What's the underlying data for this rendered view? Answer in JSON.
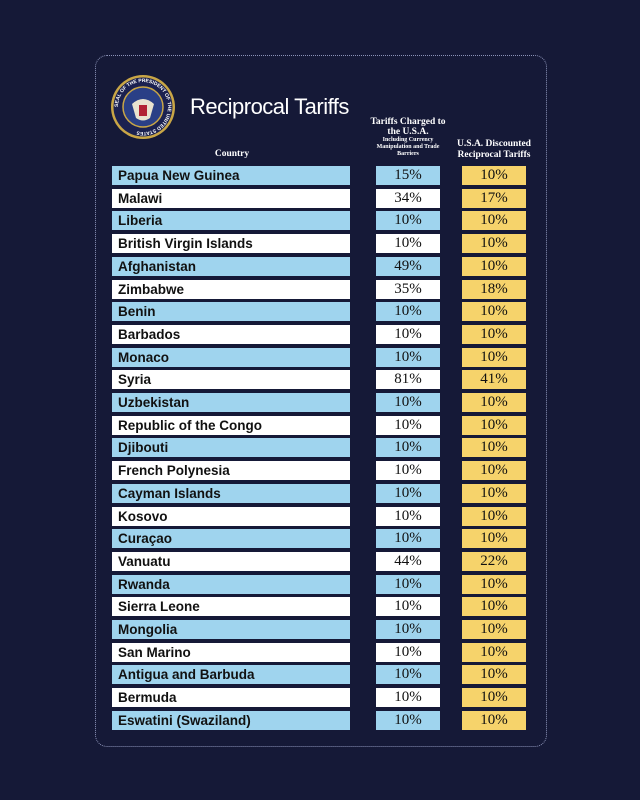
{
  "header": {
    "title": "Reciprocal Tariffs",
    "seal": "SEAL OF THE PRESIDENT OF THE UNITED STATES"
  },
  "table": {
    "columns": [
      {
        "title": "Country"
      },
      {
        "title": "Tariffs Charged to the U.S.A.",
        "note": "Including Currency Manipulation and Trade Barriers"
      },
      {
        "title": "U.S.A. Discounted Reciprocal Tariffs"
      }
    ],
    "rows": [
      [
        "Papua New Guinea",
        "15%",
        "10%"
      ],
      [
        "Malawi",
        "34%",
        "17%"
      ],
      [
        "Liberia",
        "10%",
        "10%"
      ],
      [
        "British Virgin Islands",
        "10%",
        "10%"
      ],
      [
        "Afghanistan",
        "49%",
        "10%"
      ],
      [
        "Zimbabwe",
        "35%",
        "18%"
      ],
      [
        "Benin",
        "10%",
        "10%"
      ],
      [
        "Barbados",
        "10%",
        "10%"
      ],
      [
        "Monaco",
        "10%",
        "10%"
      ],
      [
        "Syria",
        "81%",
        "41%"
      ],
      [
        "Uzbekistan",
        "10%",
        "10%"
      ],
      [
        "Republic of the Congo",
        "10%",
        "10%"
      ],
      [
        "Djibouti",
        "10%",
        "10%"
      ],
      [
        "French Polynesia",
        "10%",
        "10%"
      ],
      [
        "Cayman Islands",
        "10%",
        "10%"
      ],
      [
        "Kosovo",
        "10%",
        "10%"
      ],
      [
        "Curaçao",
        "10%",
        "10%"
      ],
      [
        "Vanuatu",
        "44%",
        "22%"
      ],
      [
        "Rwanda",
        "10%",
        "10%"
      ],
      [
        "Sierra Leone",
        "10%",
        "10%"
      ],
      [
        "Mongolia",
        "10%",
        "10%"
      ],
      [
        "San Marino",
        "10%",
        "10%"
      ],
      [
        "Antigua and Barbuda",
        "10%",
        "10%"
      ],
      [
        "Bermuda",
        "10%",
        "10%"
      ],
      [
        "Eswatini (Swaziland)",
        "10%",
        "10%"
      ]
    ]
  }
}
